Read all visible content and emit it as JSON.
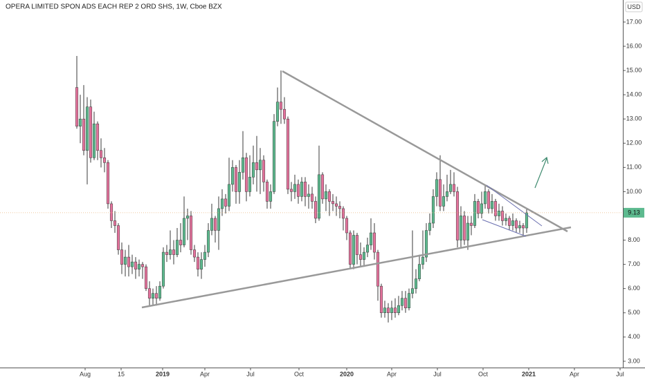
{
  "chart_data": {
    "type": "candlestick",
    "title": "OPERA LIMITED SPON ADS EACH REP 2 ORD SHS, 1W, Cboe BZX",
    "currency": "USD",
    "up_color": "#5dba8f",
    "down_color": "#e5739d",
    "wick_color": "#3a3a3a",
    "grid": false,
    "last_price": 9.13,
    "x": [
      0,
      1,
      2,
      3,
      4,
      5,
      6,
      7,
      8,
      9,
      10,
      11,
      12,
      13,
      14,
      15,
      16,
      17,
      18,
      19,
      20,
      21,
      22,
      23,
      24,
      25,
      26,
      27,
      28,
      29,
      30,
      31,
      32,
      33,
      34,
      35,
      36,
      37,
      38,
      39,
      40,
      41,
      42,
      43,
      44,
      45,
      46,
      47,
      48,
      49,
      50,
      51,
      52,
      53,
      54,
      55,
      56,
      57,
      58,
      59,
      60,
      61,
      62,
      63,
      64,
      65,
      66,
      67,
      68,
      69,
      70,
      71,
      72,
      73,
      74,
      75,
      76,
      77,
      78,
      79,
      80,
      81,
      82,
      83,
      84,
      85,
      86,
      87,
      88,
      89,
      90,
      91,
      92,
      93,
      94,
      95,
      96,
      97,
      98,
      99,
      100,
      101,
      102,
      103,
      104,
      105,
      106,
      107,
      108,
      109,
      110,
      111,
      112,
      113,
      114,
      115,
      116,
      117,
      118,
      119,
      120,
      121,
      122,
      123,
      124,
      125,
      126,
      127,
      128,
      129,
      130
    ],
    "open": [
      14.3,
      12.7,
      13.0,
      11.7,
      13.5,
      11.4,
      12.8,
      11.7,
      11.4,
      11.2,
      9.5,
      8.8,
      8.6,
      7.6,
      7.0,
      7.3,
      6.9,
      7.1,
      6.8,
      7.0,
      6.9,
      6.0,
      5.6,
      5.8,
      5.6,
      6.1,
      7.5,
      7.4,
      7.6,
      7.4,
      8.0,
      7.8,
      8.9,
      9.0,
      7.6,
      7.3,
      6.8,
      7.2,
      7.5,
      8.4,
      8.9,
      8.4,
      9.3,
      9.7,
      9.4,
      10.3,
      11.0,
      10.0,
      10.8,
      11.4,
      10.0,
      10.6,
      11.2,
      10.9,
      11.3,
      10.4,
      9.6,
      10.0,
      12.9,
      13.7,
      13.4,
      13.0,
      10.1,
      10.0,
      10.3,
      9.8,
      10.4,
      9.8,
      9.9,
      9.6,
      8.9,
      10.7,
      9.7,
      10.0,
      9.6,
      9.5,
      9.4,
      9.3,
      8.9,
      8.3,
      7.0,
      8.2,
      7.4,
      7.2,
      7.5,
      7.8,
      8.3,
      7.5,
      6.1,
      5.0,
      5.2,
      5.0,
      5.2,
      5.0,
      5.3,
      5.6,
      5.2,
      5.8,
      6.0,
      6.4,
      7.0,
      7.3,
      8.4,
      8.7,
      9.8,
      10.5,
      9.4,
      9.8,
      10.0,
      10.3,
      10.0,
      8.0,
      9.0,
      8.0,
      8.7,
      8.6,
      9.6,
      9.1,
      9.5,
      10.0,
      9.3,
      9.6,
      9.0,
      9.2,
      8.8,
      8.9,
      8.6,
      8.8,
      8.5,
      8.6,
      8.5
    ],
    "high": [
      15.6,
      14.0,
      14.4,
      13.9,
      13.8,
      13.3,
      12.9,
      12.2,
      11.8,
      11.3,
      9.6,
      9.2,
      8.7,
      7.9,
      7.6,
      7.8,
      7.4,
      7.3,
      7.2,
      7.1,
      7.0,
      6.3,
      6.0,
      6.1,
      6.3,
      7.7,
      7.8,
      8.4,
      8.0,
      8.5,
      8.7,
      9.8,
      9.3,
      9.2,
      7.8,
      7.5,
      7.5,
      7.8,
      8.7,
      9.5,
      9.0,
      9.8,
      10.1,
      9.9,
      11.4,
      11.3,
      11.1,
      11.3,
      12.5,
      11.6,
      11.5,
      11.9,
      12.3,
      11.8,
      11.5,
      10.5,
      10.3,
      13.2,
      14.3,
      15.0,
      13.9,
      13.1,
      10.4,
      10.7,
      10.5,
      10.6,
      10.6,
      10.3,
      10.2,
      9.8,
      11.9,
      10.8,
      10.3,
      10.1,
      9.9,
      9.8,
      9.6,
      9.4,
      9.0,
      8.4,
      8.4,
      8.3,
      7.9,
      7.7,
      8.1,
      8.9,
      8.7,
      7.6,
      6.2,
      5.5,
      5.4,
      5.5,
      5.6,
      5.7,
      5.9,
      5.9,
      6.0,
      8.4,
      6.8,
      7.4,
      8.4,
      8.7,
      9.1,
      10.1,
      10.8,
      11.5,
      10.3,
      10.7,
      10.9,
      10.8,
      10.2,
      9.4,
      9.2,
      9.0,
      9.0,
      9.9,
      9.7,
      10.0,
      10.3,
      10.1,
      9.9,
      9.7,
      9.5,
      9.4,
      9.1,
      9.0,
      9.1,
      8.9,
      8.8,
      8.7,
      9.3
    ],
    "low": [
      12.6,
      12.0,
      11.5,
      10.3,
      11.2,
      11.3,
      11.3,
      11.0,
      10.8,
      9.3,
      8.5,
      8.3,
      7.4,
      6.6,
      6.5,
      6.5,
      6.6,
      6.4,
      6.5,
      6.4,
      5.9,
      5.3,
      5.3,
      5.3,
      5.5,
      6.0,
      7.1,
      7.2,
      7.0,
      7.3,
      7.5,
      7.7,
      8.0,
      7.4,
      7.1,
      6.5,
      6.4,
      6.9,
      7.3,
      8.2,
      7.9,
      7.6,
      9.0,
      9.1,
      9.2,
      10.0,
      9.5,
      9.5,
      10.5,
      9.6,
      9.8,
      10.3,
      10.0,
      9.9,
      10.0,
      9.3,
      9.3,
      9.9,
      12.7,
      12.8,
      12.8,
      9.9,
      9.6,
      9.7,
      9.5,
      9.6,
      9.4,
      9.3,
      9.3,
      8.7,
      8.8,
      9.5,
      9.2,
      9.0,
      9.2,
      9.0,
      8.9,
      8.4,
      8.0,
      6.8,
      6.8,
      7.0,
      6.9,
      6.9,
      7.3,
      7.6,
      7.2,
      5.5,
      4.8,
      4.8,
      4.6,
      4.7,
      4.8,
      4.9,
      5.1,
      5.0,
      5.1,
      5.6,
      5.8,
      6.3,
      6.8,
      7.1,
      8.2,
      8.5,
      9.4,
      9.2,
      9.2,
      9.6,
      9.9,
      9.8,
      7.7,
      7.7,
      7.8,
      7.6,
      8.2,
      8.5,
      8.9,
      8.9,
      9.3,
      9.1,
      9.1,
      8.8,
      8.8,
      8.6,
      8.6,
      8.4,
      8.4,
      8.3,
      8.3,
      8.2,
      8.3
    ],
    "close": [
      12.7,
      13.0,
      11.7,
      13.5,
      11.4,
      12.8,
      11.7,
      11.4,
      11.2,
      9.5,
      8.8,
      8.6,
      7.6,
      7.0,
      7.3,
      6.9,
      7.1,
      6.8,
      7.0,
      6.9,
      6.0,
      5.6,
      5.8,
      5.6,
      6.1,
      7.5,
      7.4,
      7.6,
      7.4,
      8.0,
      7.8,
      8.9,
      9.0,
      7.6,
      7.3,
      6.8,
      7.2,
      7.5,
      8.4,
      8.9,
      8.4,
      9.3,
      9.7,
      9.4,
      10.3,
      11.0,
      10.0,
      10.8,
      11.4,
      10.0,
      10.6,
      11.2,
      10.9,
      11.3,
      10.4,
      9.6,
      10.0,
      12.9,
      13.7,
      13.4,
      13.0,
      10.1,
      10.0,
      10.3,
      9.8,
      10.4,
      9.8,
      9.9,
      9.6,
      8.9,
      10.7,
      9.7,
      10.0,
      9.6,
      9.5,
      9.4,
      9.3,
      8.9,
      8.3,
      7.0,
      8.2,
      7.4,
      7.2,
      7.5,
      7.8,
      8.3,
      7.5,
      6.1,
      5.0,
      5.2,
      5.0,
      5.2,
      5.0,
      5.3,
      5.6,
      5.2,
      5.8,
      6.0,
      6.4,
      7.0,
      7.3,
      8.4,
      8.7,
      9.8,
      10.5,
      9.4,
      9.8,
      10.0,
      10.3,
      10.0,
      8.0,
      9.0,
      8.0,
      8.7,
      8.6,
      9.6,
      9.1,
      9.5,
      10.0,
      9.3,
      9.6,
      9.0,
      9.2,
      8.8,
      8.9,
      8.6,
      8.8,
      8.5,
      8.6,
      8.5,
      9.13
    ],
    "xlim": [
      -22.2,
      157.8
    ],
    "xticks": [
      {
        "value": 2.4,
        "label": "Aug"
      },
      {
        "value": 12.8,
        "label": "15"
      },
      {
        "value": 24.8,
        "label": "2019"
      },
      {
        "value": 37,
        "label": "Apr"
      },
      {
        "value": 50.2,
        "label": "Jul"
      },
      {
        "value": 64.2,
        "label": "Oct"
      },
      {
        "value": 78,
        "label": "2020"
      },
      {
        "value": 91,
        "label": "Apr"
      },
      {
        "value": 104.2,
        "label": "Jul"
      },
      {
        "value": 117.4,
        "label": "Oct"
      },
      {
        "value": 130.6,
        "label": "2021"
      },
      {
        "value": 143.8,
        "label": "Apr"
      },
      {
        "value": 157,
        "label": "Jul"
      }
    ],
    "ylim": [
      2.74,
      17.91
    ],
    "yticks": [
      {
        "value": 3,
        "label": "3.00"
      },
      {
        "value": 4,
        "label": "4.00"
      },
      {
        "value": 5,
        "label": "5.00"
      },
      {
        "value": 6,
        "label": "6.00"
      },
      {
        "value": 7,
        "label": "7.00"
      },
      {
        "value": 8,
        "label": "8.00"
      },
      {
        "value": 10,
        "label": "10.00"
      },
      {
        "value": 11,
        "label": "11.00"
      },
      {
        "value": 12,
        "label": "12.00"
      },
      {
        "value": 13,
        "label": "13.00"
      },
      {
        "value": 14,
        "label": "14.00"
      },
      {
        "value": 15,
        "label": "15.00"
      },
      {
        "value": 16,
        "label": "16.00"
      },
      {
        "value": 17,
        "label": "17.00"
      }
    ]
  }
}
